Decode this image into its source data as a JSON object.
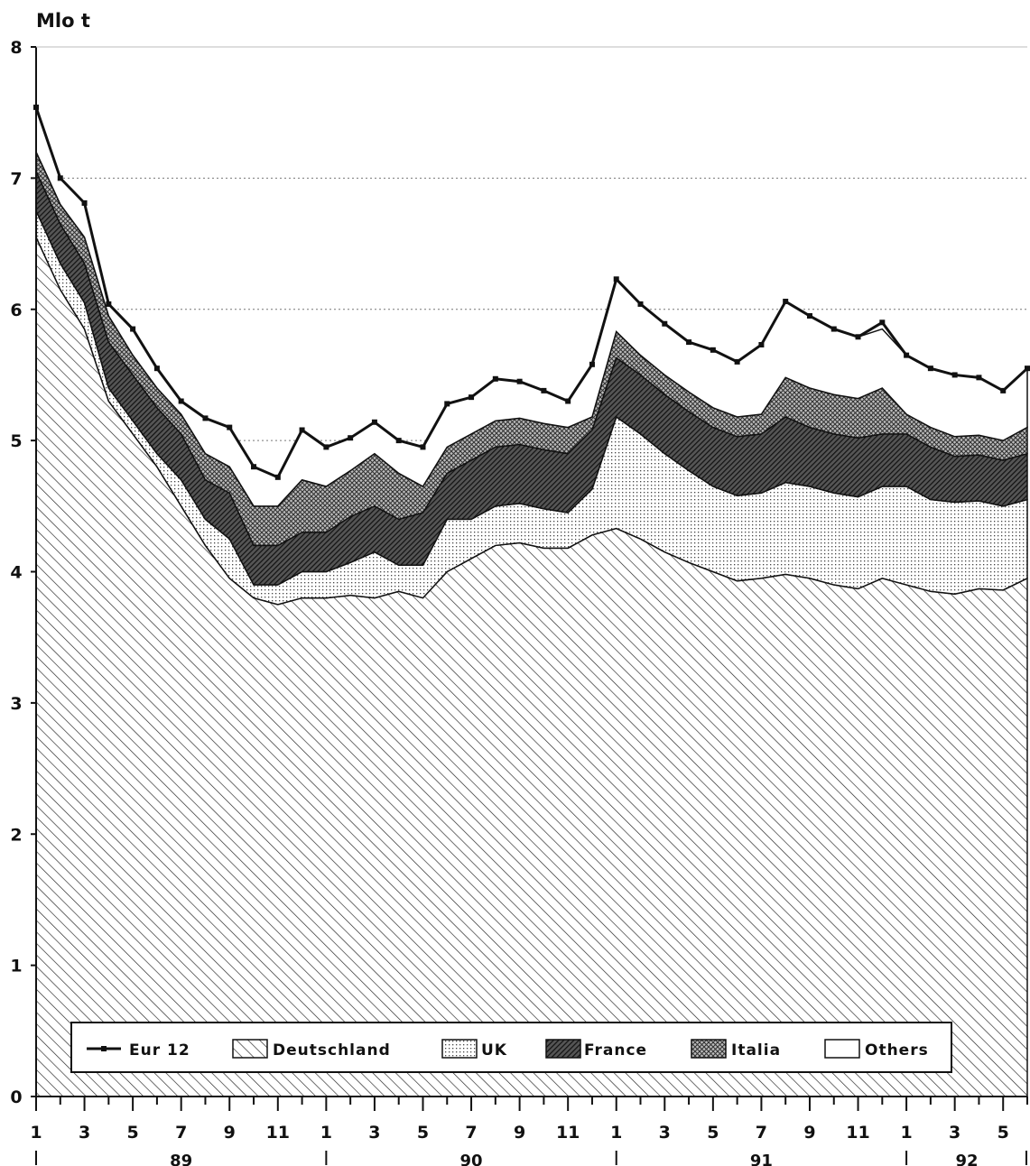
{
  "chart_data": {
    "type": "area",
    "stacked": true,
    "ylabel": "Mlo t",
    "ylim": [
      0,
      8
    ],
    "yticks": [
      "0",
      "1",
      "2",
      "3",
      "4",
      "5",
      "6",
      "7",
      "8"
    ],
    "grid": true,
    "legend_position": "bottom",
    "x_tick_labels": [
      "1",
      "3",
      "5",
      "7",
      "9",
      "11",
      "1",
      "3",
      "5",
      "7",
      "9",
      "11",
      "1",
      "3",
      "5",
      "7",
      "9",
      "11",
      "1",
      "3",
      "5"
    ],
    "years": [
      "89",
      "90",
      "91",
      "92"
    ],
    "series": [
      {
        "name": "Deutschland",
        "pattern": "diagonal",
        "values": [
          6.55,
          6.15,
          5.85,
          5.3,
          5.05,
          4.8,
          4.5,
          4.2,
          3.95,
          3.8,
          3.75,
          3.8,
          3.8,
          3.82,
          3.8,
          3.85,
          3.8,
          4.0,
          4.1,
          4.2,
          4.22,
          4.18,
          4.18,
          4.28,
          4.33,
          4.25,
          4.15,
          4.07,
          4.0,
          3.93,
          3.95,
          3.98,
          3.95,
          3.9,
          3.87,
          3.95,
          3.9,
          3.85,
          3.83,
          3.87,
          3.86,
          3.95
        ]
      },
      {
        "name": "UK",
        "pattern": "dots",
        "values": [
          0.2,
          0.2,
          0.2,
          0.1,
          0.1,
          0.1,
          0.2,
          0.2,
          0.3,
          0.1,
          0.15,
          0.2,
          0.2,
          0.25,
          0.35,
          0.2,
          0.25,
          0.4,
          0.3,
          0.3,
          0.3,
          0.3,
          0.27,
          0.35,
          0.85,
          0.8,
          0.75,
          0.7,
          0.65,
          0.65,
          0.65,
          0.7,
          0.7,
          0.7,
          0.7,
          0.7,
          0.75,
          0.7,
          0.7,
          0.67,
          0.64,
          0.6
        ]
      },
      {
        "name": "France",
        "pattern": "dense-diagonal",
        "values": [
          0.3,
          0.3,
          0.3,
          0.35,
          0.35,
          0.35,
          0.35,
          0.3,
          0.35,
          0.3,
          0.3,
          0.3,
          0.3,
          0.35,
          0.35,
          0.35,
          0.4,
          0.35,
          0.45,
          0.45,
          0.45,
          0.45,
          0.45,
          0.45,
          0.45,
          0.45,
          0.45,
          0.45,
          0.45,
          0.45,
          0.45,
          0.5,
          0.45,
          0.45,
          0.45,
          0.4,
          0.4,
          0.4,
          0.35,
          0.35,
          0.35,
          0.35
        ]
      },
      {
        "name": "Italia",
        "pattern": "crosshatch",
        "values": [
          0.15,
          0.15,
          0.2,
          0.2,
          0.15,
          0.15,
          0.15,
          0.2,
          0.2,
          0.3,
          0.3,
          0.4,
          0.35,
          0.35,
          0.4,
          0.35,
          0.2,
          0.2,
          0.2,
          0.2,
          0.2,
          0.2,
          0.2,
          0.1,
          0.2,
          0.15,
          0.15,
          0.15,
          0.15,
          0.15,
          0.15,
          0.3,
          0.3,
          0.3,
          0.3,
          0.35,
          0.15,
          0.15,
          0.15,
          0.15,
          0.15,
          0.2
        ]
      },
      {
        "name": "Others",
        "pattern": "blank",
        "values": [
          0.34,
          0.2,
          0.26,
          0.09,
          0.2,
          0.15,
          0.1,
          0.27,
          0.3,
          0.3,
          0.22,
          0.38,
          0.3,
          0.25,
          0.24,
          0.25,
          0.3,
          0.33,
          0.28,
          0.32,
          0.28,
          0.25,
          0.2,
          0.4,
          0.4,
          0.39,
          0.39,
          0.38,
          0.44,
          0.42,
          0.53,
          0.58,
          0.55,
          0.5,
          0.47,
          0.45,
          0.45,
          0.45,
          0.47,
          0.44,
          0.38,
          0.45
        ]
      },
      {
        "name": "Eur 12",
        "type": "line",
        "values": [
          7.54,
          7.0,
          6.81,
          6.04,
          5.85,
          5.55,
          5.3,
          5.17,
          5.1,
          4.8,
          4.72,
          5.08,
          4.95,
          5.02,
          5.14,
          5.0,
          4.95,
          5.28,
          5.33,
          5.47,
          5.45,
          5.38,
          5.3,
          5.58,
          6.23,
          6.04,
          5.89,
          5.75,
          5.69,
          5.6,
          5.73,
          6.06,
          5.95,
          5.85,
          5.79,
          5.9,
          5.65,
          5.55,
          5.5,
          5.48,
          5.38,
          5.55
        ]
      }
    ]
  },
  "legend": {
    "items": [
      {
        "label": "Eur 12",
        "pattern": "line"
      },
      {
        "label": "Deutschland",
        "pattern": "diagonal"
      },
      {
        "label": "UK",
        "pattern": "dots"
      },
      {
        "label": "France",
        "pattern": "dense-diagonal"
      },
      {
        "label": "Italia",
        "pattern": "crosshatch"
      },
      {
        "label": "Others",
        "pattern": "blank"
      }
    ]
  }
}
